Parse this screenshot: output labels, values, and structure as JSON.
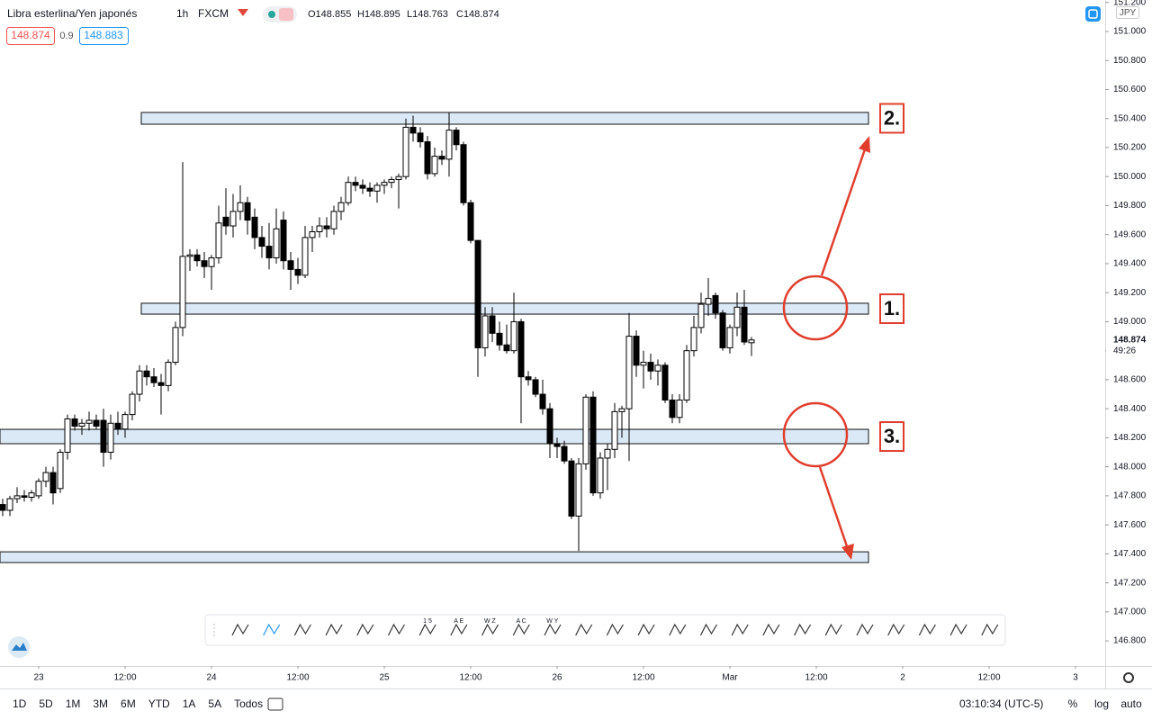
{
  "chart_data": {
    "type": "candlestick",
    "title": "Libra esterlina/Yen japonés",
    "interval": "1h",
    "source": "FXCM",
    "ohlc_labels": [
      "O148.855",
      "H148.895",
      "L148.763",
      "C148.874"
    ],
    "bid": 148.874,
    "spread": 0.9,
    "ask": 148.883,
    "currency": "JPY",
    "last_price": 148.874,
    "countdown": "49:26",
    "up_color": "#ffffff",
    "down_color": "#000000",
    "candles": {
      "open": [
        147.74,
        147.7,
        147.78,
        147.8,
        147.79,
        147.8,
        147.9,
        147.96,
        147.85,
        148.1,
        148.33,
        148.28,
        148.3,
        148.32,
        148.32,
        148.1,
        148.3,
        148.26,
        148.36,
        148.5,
        148.66,
        148.62,
        148.58,
        148.56,
        148.72,
        148.96,
        149.45,
        149.46,
        149.42,
        149.38,
        149.44,
        149.72,
        149.66,
        149.76,
        149.82,
        149.72,
        149.58,
        149.52,
        149.44,
        149.7,
        149.42,
        149.36,
        149.32,
        149.58,
        149.62,
        149.66,
        149.64,
        149.76,
        149.82,
        149.96,
        149.94,
        149.92,
        149.9,
        149.94,
        149.96,
        149.98,
        150.0,
        150.34,
        150.3,
        150.24,
        150.02,
        150.14,
        150.12,
        150.32,
        150.22,
        149.82,
        149.56,
        148.82,
        149.04,
        148.92,
        148.84,
        148.8,
        149.0,
        148.62,
        148.6,
        148.5,
        148.4,
        148.16,
        148.14,
        148.04,
        147.66,
        148.02,
        148.48,
        147.82,
        148.06,
        148.12,
        148.38,
        148.4,
        148.9,
        148.7,
        148.72,
        148.66,
        148.7,
        148.46,
        148.34,
        148.46,
        148.8,
        148.96,
        149.12,
        149.18,
        149.06,
        148.82,
        148.96,
        149.1,
        148.855
      ],
      "high": [
        147.78,
        147.8,
        147.86,
        147.84,
        147.84,
        147.92,
        148.0,
        148.0,
        148.12,
        148.36,
        148.36,
        148.33,
        148.38,
        148.36,
        148.4,
        148.36,
        148.38,
        148.38,
        148.52,
        148.7,
        148.7,
        148.68,
        148.64,
        148.74,
        149.0,
        150.1,
        149.5,
        149.5,
        149.48,
        149.46,
        149.8,
        149.92,
        149.88,
        149.94,
        149.86,
        149.78,
        149.66,
        149.68,
        149.78,
        149.76,
        149.48,
        149.44,
        149.66,
        149.66,
        149.72,
        149.72,
        149.8,
        149.86,
        150.0,
        150.0,
        149.98,
        149.96,
        149.96,
        149.98,
        150.0,
        150.02,
        150.4,
        150.42,
        150.34,
        150.28,
        150.2,
        150.18,
        150.44,
        150.34,
        150.24,
        149.84,
        149.56,
        149.1,
        149.1,
        149.0,
        148.98,
        149.2,
        149.02,
        148.66,
        148.62,
        148.6,
        148.44,
        148.2,
        148.18,
        148.06,
        148.06,
        148.5,
        148.52,
        148.1,
        148.16,
        148.44,
        148.42,
        149.06,
        148.94,
        148.8,
        148.78,
        148.74,
        148.72,
        148.5,
        148.5,
        148.84,
        149.04,
        149.2,
        149.3,
        149.2,
        149.08,
        148.98,
        149.2,
        149.22,
        148.895
      ],
      "low": [
        147.66,
        147.66,
        147.75,
        147.76,
        147.76,
        147.78,
        147.86,
        147.74,
        147.82,
        148.05,
        148.25,
        148.22,
        148.25,
        148.26,
        148.0,
        148.05,
        148.22,
        148.2,
        148.32,
        148.45,
        148.56,
        148.55,
        148.36,
        148.52,
        148.7,
        148.9,
        149.35,
        149.38,
        149.3,
        149.22,
        149.4,
        149.6,
        149.58,
        149.7,
        149.6,
        149.5,
        149.44,
        149.36,
        149.4,
        149.36,
        149.22,
        149.26,
        149.3,
        149.48,
        149.58,
        149.58,
        149.6,
        149.7,
        149.8,
        149.9,
        149.88,
        149.86,
        149.82,
        149.88,
        149.92,
        149.78,
        149.98,
        150.24,
        150.2,
        149.98,
        150.0,
        150.08,
        150.0,
        150.18,
        149.8,
        149.54,
        148.62,
        148.76,
        148.86,
        148.8,
        148.78,
        148.78,
        148.3,
        148.56,
        148.48,
        148.36,
        148.06,
        148.06,
        148.02,
        147.64,
        147.42,
        147.98,
        147.8,
        147.78,
        147.84,
        148.06,
        148.2,
        148.04,
        148.62,
        148.54,
        148.6,
        148.56,
        148.44,
        148.3,
        148.3,
        148.44,
        148.76,
        148.92,
        149.04,
        149.02,
        148.8,
        148.78,
        148.9,
        148.84,
        148.763
      ],
      "close": [
        147.7,
        147.78,
        147.8,
        147.79,
        147.82,
        147.9,
        147.96,
        147.82,
        148.1,
        148.33,
        148.28,
        148.3,
        148.32,
        148.28,
        148.1,
        148.3,
        148.26,
        148.36,
        148.5,
        148.66,
        148.62,
        148.58,
        148.56,
        148.72,
        148.96,
        149.45,
        149.46,
        149.42,
        149.38,
        149.44,
        149.68,
        149.66,
        149.76,
        149.82,
        149.7,
        149.58,
        149.52,
        149.44,
        149.64,
        149.42,
        149.36,
        149.32,
        149.58,
        149.62,
        149.66,
        149.64,
        149.76,
        149.82,
        149.96,
        149.94,
        149.92,
        149.9,
        149.94,
        149.96,
        149.98,
        150.0,
        150.34,
        150.3,
        150.24,
        150.02,
        150.14,
        150.12,
        150.32,
        150.22,
        149.82,
        149.56,
        148.82,
        149.04,
        148.92,
        148.84,
        148.8,
        149.0,
        148.62,
        148.6,
        148.5,
        148.4,
        148.16,
        148.14,
        148.04,
        147.66,
        148.02,
        148.48,
        147.82,
        148.06,
        148.12,
        148.38,
        148.4,
        148.9,
        148.7,
        148.72,
        148.66,
        148.7,
        148.46,
        148.34,
        148.46,
        148.8,
        148.96,
        149.12,
        149.16,
        149.06,
        148.82,
        148.96,
        149.1,
        148.86,
        148.874
      ]
    },
    "xlim": [
      -0.375,
      153.125
    ],
    "xticks": [
      {
        "value": 5,
        "label": "23"
      },
      {
        "value": 17,
        "label": "12:00"
      },
      {
        "value": 29,
        "label": "24"
      },
      {
        "value": 41,
        "label": "12:00"
      },
      {
        "value": 53,
        "label": "25"
      },
      {
        "value": 65,
        "label": "12:00"
      },
      {
        "value": 77,
        "label": "26"
      },
      {
        "value": 89,
        "label": "12:00"
      },
      {
        "value": 101,
        "label": "Mar"
      },
      {
        "value": 113,
        "label": "12:00"
      },
      {
        "value": 125,
        "label": "2"
      },
      {
        "value": 137,
        "label": "12:00"
      },
      {
        "value": 149,
        "label": "3"
      }
    ],
    "ylim": [
      146.627,
      151.217
    ],
    "yticks": [
      {
        "value": 146.8,
        "label": "146.800"
      },
      {
        "value": 147.0,
        "label": "147.000"
      },
      {
        "value": 147.2,
        "label": "147.200"
      },
      {
        "value": 147.4,
        "label": "147.400"
      },
      {
        "value": 147.6,
        "label": "147.600"
      },
      {
        "value": 147.8,
        "label": "147.800"
      },
      {
        "value": 148.0,
        "label": "148.000"
      },
      {
        "value": 148.2,
        "label": "148.200"
      },
      {
        "value": 148.4,
        "label": "148.400"
      },
      {
        "value": 148.6,
        "label": "148.600"
      },
      {
        "value": 148.8,
        "label": "148.800"
      },
      {
        "value": 149.0,
        "label": "149.000"
      },
      {
        "value": 149.2,
        "label": "149.200"
      },
      {
        "value": 149.4,
        "label": "149.400"
      },
      {
        "value": 149.6,
        "label": "149.600"
      },
      {
        "value": 149.8,
        "label": "149.800"
      },
      {
        "value": 150.0,
        "label": "150.000"
      },
      {
        "value": 150.2,
        "label": "150.200"
      },
      {
        "value": 150.4,
        "label": "150.400"
      },
      {
        "value": 150.6,
        "label": "150.600"
      },
      {
        "value": 150.8,
        "label": "150.800"
      },
      {
        "value": 151.0,
        "label": "151.000"
      },
      {
        "value": 151.2,
        "label": "151.200"
      }
    ],
    "grid": false,
    "zones": [
      {
        "top": 149.127,
        "bottom": 149.052,
        "label": "1."
      },
      {
        "top": 150.442,
        "bottom": 150.361,
        "label": "2."
      },
      {
        "top": 148.258,
        "bottom": 148.159,
        "label": "3."
      },
      {
        "top": 147.414,
        "bottom": 147.34
      }
    ],
    "zone_color": "#dbe9f7"
  },
  "toolbar": {
    "labels": [
      "1 5",
      "A E",
      "W Z",
      "A C",
      "W Y"
    ]
  },
  "bottom_bar": {
    "ranges": [
      "1D",
      "5D",
      "1M",
      "3M",
      "6M",
      "YTD",
      "1A",
      "5A",
      "Todos"
    ],
    "clock": "03:10:34 (UTC-5)",
    "percent": "%",
    "log": "log",
    "auto": "auto"
  }
}
